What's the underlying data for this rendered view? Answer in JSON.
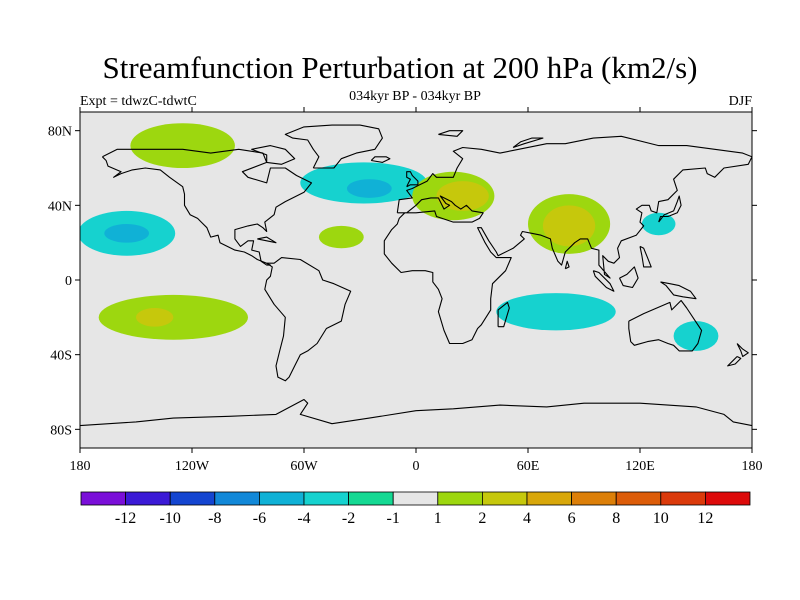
{
  "title": "Streamfunction Perturbation at 200 hPa (km2/s)",
  "subtitle": "034kyr BP - 034kyr BP",
  "left_label": "Expt = tdwzC-tdwtC",
  "right_label": "DJF",
  "map": {
    "background": "#e6e6e6",
    "coastline_color": "#000000",
    "lat_ticks": [
      {
        "value": 80,
        "label": "80N"
      },
      {
        "value": 40,
        "label": "40N"
      },
      {
        "value": 0,
        "label": "0"
      },
      {
        "value": -40,
        "label": "40S"
      },
      {
        "value": -80,
        "label": "80S"
      }
    ],
    "lon_ticks": [
      {
        "value": -180,
        "label": "180"
      },
      {
        "value": -120,
        "label": "120W"
      },
      {
        "value": -60,
        "label": "60W"
      },
      {
        "value": 0,
        "label": "0"
      },
      {
        "value": 60,
        "label": "60E"
      },
      {
        "value": 120,
        "label": "120E"
      },
      {
        "value": 180,
        "label": "180"
      }
    ]
  },
  "colorbar": {
    "colors": [
      "#7a0fd8",
      "#3b1ad6",
      "#1445d0",
      "#1288d8",
      "#10b1d6",
      "#16d2cf",
      "#15d993",
      "#e6e6e6",
      "#9dd70f",
      "#c6c80c",
      "#d8a70a",
      "#dc7f09",
      "#dc5c09",
      "#db3a0b",
      "#dd0a0a"
    ],
    "labels": [
      "-12",
      "-10",
      "-8",
      "-6",
      "-4",
      "-2",
      "-1",
      "1",
      "2",
      "4",
      "6",
      "8",
      "10",
      "12"
    ]
  },
  "anomalies": [
    {
      "name": "north-america-ridge",
      "lon": -125,
      "lat": 72,
      "rx": 28,
      "ry": 12,
      "level": "2"
    },
    {
      "name": "north-atlantic-trough",
      "lon": -28,
      "lat": 52,
      "rx": 34,
      "ry": 11,
      "level": "-2"
    },
    {
      "name": "north-atlantic-trough-core",
      "lon": -25,
      "lat": 49,
      "rx": 12,
      "ry": 5,
      "level": "-4"
    },
    {
      "name": "europe-ridge",
      "lon": 20,
      "lat": 45,
      "rx": 22,
      "ry": 13,
      "level": "2"
    },
    {
      "name": "europe-ridge-core",
      "lon": 25,
      "lat": 45,
      "rx": 14,
      "ry": 8,
      "level": "4"
    },
    {
      "name": "asia-ridge",
      "lon": 82,
      "lat": 30,
      "rx": 22,
      "ry": 16,
      "level": "2"
    },
    {
      "name": "asia-ridge-core",
      "lon": 82,
      "lat": 29,
      "rx": 14,
      "ry": 11,
      "level": "4"
    },
    {
      "name": "east-pacific-trough",
      "lon": -155,
      "lat": 25,
      "rx": 26,
      "ry": 12,
      "level": "-2"
    },
    {
      "name": "east-pacific-trough-core",
      "lon": -155,
      "lat": 25,
      "rx": 12,
      "ry": 5,
      "level": "-4"
    },
    {
      "name": "south-pacific-ridge",
      "lon": -130,
      "lat": -20,
      "rx": 40,
      "ry": 12,
      "level": "2"
    },
    {
      "name": "south-pacific-ridge-core",
      "lon": -140,
      "lat": -20,
      "rx": 10,
      "ry": 5,
      "level": "4"
    },
    {
      "name": "indian-ocean-trough",
      "lon": 75,
      "lat": -17,
      "rx": 32,
      "ry": 10,
      "level": "-2"
    },
    {
      "name": "australia-trough",
      "lon": 150,
      "lat": -30,
      "rx": 12,
      "ry": 8,
      "level": "-2"
    },
    {
      "name": "japan-trough",
      "lon": 130,
      "lat": 30,
      "rx": 9,
      "ry": 6,
      "level": "-2"
    },
    {
      "name": "tropical-atlantic-ridge",
      "lon": -40,
      "lat": 23,
      "rx": 12,
      "ry": 6,
      "level": "2"
    }
  ]
}
